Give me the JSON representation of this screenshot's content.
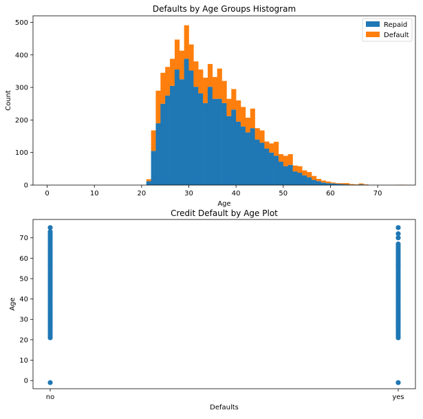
{
  "chart_data": [
    {
      "type": "bar",
      "subtype": "stacked-histogram",
      "title": "Defaults by Age Groups Histogram",
      "xlabel": "Age",
      "ylabel": "Count",
      "xlim": [
        -3,
        78
      ],
      "ylim": [
        0,
        520
      ],
      "xticks": [
        0,
        10,
        20,
        30,
        40,
        50,
        60,
        70
      ],
      "yticks": [
        0,
        100,
        200,
        300,
        400,
        500
      ],
      "bin_start": 21,
      "bin_width": 1,
      "legend": {
        "position": "top-right"
      },
      "series": [
        {
          "name": "Repaid",
          "color": "#1f77b4",
          "values": [
            12,
            105,
            190,
            250,
            275,
            305,
            355,
            325,
            388,
            352,
            302,
            282,
            252,
            302,
            265,
            265,
            252,
            212,
            232,
            195,
            180,
            162,
            175,
            140,
            130,
            112,
            100,
            90,
            72,
            58,
            62,
            42,
            38,
            30,
            24,
            16,
            12,
            8,
            6,
            5,
            4,
            3,
            2,
            1,
            1,
            2,
            1,
            0,
            0,
            0,
            0,
            0,
            0,
            0,
            0
          ]
        },
        {
          "name": "Default",
          "color": "#ff7f0e",
          "values": [
            6,
            63,
            100,
            95,
            88,
            83,
            92,
            88,
            103,
            80,
            78,
            73,
            78,
            70,
            67,
            93,
            68,
            53,
            63,
            65,
            60,
            45,
            60,
            35,
            38,
            22,
            28,
            43,
            23,
            32,
            33,
            18,
            20,
            15,
            16,
            12,
            7,
            6,
            5,
            3,
            2,
            3,
            4,
            2,
            1,
            3,
            1,
            0,
            0,
            0,
            0,
            0,
            0,
            1,
            1
          ]
        }
      ]
    },
    {
      "type": "scatter",
      "title": "Credit Default by Age Plot",
      "xlabel": "Defaults",
      "ylabel": "Age",
      "categories": [
        "no",
        "yes"
      ],
      "ylim": [
        -4,
        79
      ],
      "yticks": [
        0,
        10,
        20,
        30,
        40,
        50,
        60,
        70
      ],
      "grid": false,
      "color": "#1f77b4",
      "series": [
        {
          "category": "no",
          "y": [
            -1,
            21,
            22,
            23,
            24,
            25,
            26,
            27,
            28,
            29,
            30,
            31,
            32,
            33,
            34,
            35,
            36,
            37,
            38,
            39,
            40,
            41,
            42,
            43,
            44,
            45,
            46,
            47,
            48,
            49,
            50,
            51,
            52,
            53,
            54,
            55,
            56,
            57,
            58,
            59,
            60,
            61,
            62,
            63,
            64,
            65,
            66,
            67,
            68,
            69,
            70,
            71,
            72,
            73,
            75
          ]
        },
        {
          "category": "yes",
          "y": [
            -1,
            21,
            22,
            23,
            24,
            25,
            26,
            27,
            28,
            29,
            30,
            31,
            32,
            33,
            34,
            35,
            36,
            37,
            38,
            39,
            40,
            41,
            42,
            43,
            44,
            45,
            46,
            47,
            48,
            49,
            50,
            51,
            52,
            53,
            54,
            55,
            56,
            57,
            58,
            59,
            60,
            61,
            62,
            63,
            64,
            65,
            66,
            67,
            70,
            72,
            75
          ]
        }
      ]
    }
  ]
}
